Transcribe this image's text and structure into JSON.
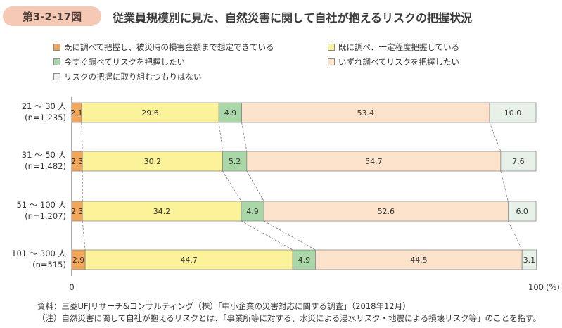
{
  "figure": {
    "label": "第3-2-17図",
    "title": "従業員規模別に見た、自然災害に関して自社が抱えるリスクの把握状況"
  },
  "colors": {
    "badge": "#f6c9b4",
    "s1": "#f2a65a",
    "s2": "#fbf29a",
    "s3": "#a9d7a7",
    "s4": "#fde3cc",
    "s5": "#e7f1e7",
    "bar_border": "#8a8a8a",
    "connector": "#777777"
  },
  "chart_data": {
    "type": "bar",
    "orientation": "horizontal",
    "stacked": true,
    "categories": [
      [
        "21 〜 30 人",
        "(n=1,235)"
      ],
      [
        "31 〜 50 人",
        "(n=1,482)"
      ],
      [
        "51 〜 100 人",
        "(n=1,207)"
      ],
      [
        "101 〜 300 人",
        "(n=515)"
      ]
    ],
    "series": [
      {
        "name": "既に調べて把握し、被災時の損害金額まで想定できている",
        "color": "#f2a65a",
        "values": [
          2.1,
          2.3,
          2.3,
          2.9
        ]
      },
      {
        "name": "既に調べ、一定程度把握している",
        "color": "#fbf29a",
        "values": [
          29.6,
          30.2,
          34.2,
          44.7
        ]
      },
      {
        "name": "今すぐ調べてリスクを把握したい",
        "color": "#a9d7a7",
        "values": [
          4.9,
          5.2,
          4.9,
          4.9
        ]
      },
      {
        "name": "いずれ調べてリスクを把握したい",
        "color": "#fde3cc",
        "values": [
          53.4,
          54.7,
          52.6,
          44.5
        ]
      },
      {
        "name": "リスクの把握に取り組むつもりはない",
        "color": "#e7f1e7",
        "values": [
          10.0,
          7.6,
          6.0,
          3.1
        ]
      }
    ],
    "value_labels": [
      [
        "2.1",
        "29.6",
        "4.9",
        "53.4",
        "10.0"
      ],
      [
        "2.3",
        "30.2",
        "5.2",
        "54.7",
        "7.6"
      ],
      [
        "2.3",
        "34.2",
        "4.9",
        "52.6",
        "6.0"
      ],
      [
        "2.9",
        "44.7",
        "4.9",
        "44.5",
        "3.1"
      ]
    ],
    "xlim": [
      0,
      100
    ],
    "xticks": [
      "0",
      "100"
    ],
    "xunit": "(%)",
    "grid": false,
    "legend_position": "top"
  },
  "notes": {
    "source": "資料：三菱UFJリサーチ&コンサルティング（株）「中小企業の災害対応に関する調査」（2018年12月）",
    "note": "（注）自然災害に関して自社が抱えるリスクとは、「事業所等に対する、水災による浸水リスク・地震による損壊リスク等」のことを指す。"
  }
}
